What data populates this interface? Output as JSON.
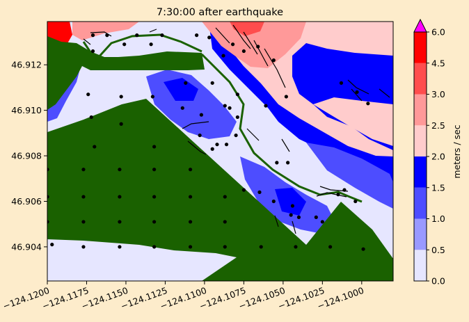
{
  "chart_data": {
    "type": "heatmap",
    "title": "7:30:00 after earthquake",
    "xlim": [
      -124.12,
      -124.098
    ],
    "ylim": [
      46.9025,
      46.9139
    ],
    "x_ticks": [
      -124.12,
      -124.1175,
      -124.115,
      -124.1125,
      -124.11,
      -124.1075,
      -124.105,
      -124.1025,
      -124.1
    ],
    "x_tick_labels": [
      "−124.1200",
      "−124.1175",
      "−124.1150",
      "−124.1125",
      "−124.1100",
      "−124.1075",
      "−124.1050",
      "−124.1025",
      "−124.1000"
    ],
    "y_ticks": [
      46.904,
      46.906,
      46.908,
      46.91,
      46.912
    ],
    "y_tick_labels": [
      "46.904",
      "46.906",
      "46.908",
      "46.910",
      "46.912"
    ],
    "colorbar": {
      "label": "meters / sec",
      "boundaries": [
        0.0,
        0.5,
        1.0,
        1.5,
        2.0,
        2.5,
        3.0,
        4.5,
        6.0
      ],
      "tick_labels": [
        "0.0",
        "0.5",
        "1.0",
        "1.5",
        "2.0",
        "2.5",
        "3.0",
        "4.5",
        "6.0"
      ],
      "colors": [
        "#e6e6ff",
        "#9999ff",
        "#4d4dff",
        "#0000ff",
        "#ffcccc",
        "#ff9999",
        "#ff4d4d",
        "#ff0000"
      ],
      "extend_color": "#ff00ff"
    },
    "colors": {
      "land": "#1a6100",
      "marker": "#000000"
    },
    "markers": [
      [
        -124.1171,
        46.9133
      ],
      [
        -124.1162,
        46.9133
      ],
      [
        -124.1143,
        46.9133
      ],
      [
        -124.1127,
        46.9133
      ],
      [
        -124.1105,
        46.9133
      ],
      [
        -124.1171,
        46.9126
      ],
      [
        -124.1151,
        46.9129
      ],
      [
        -124.1134,
        46.9129
      ],
      [
        -124.1174,
        46.9107
      ],
      [
        -124.1172,
        46.9097
      ],
      [
        -124.117,
        46.9084
      ],
      [
        -124.1153,
        46.9106
      ],
      [
        -124.1153,
        46.9094
      ],
      [
        -124.1132,
        46.9084
      ],
      [
        -124.1133,
        46.9106
      ],
      [
        -124.12,
        46.9074
      ],
      [
        -124.1177,
        46.9074
      ],
      [
        -124.1154,
        46.9074
      ],
      [
        -124.1132,
        46.9074
      ],
      [
        -124.1109,
        46.9074
      ],
      [
        -124.12,
        46.9062
      ],
      [
        -124.1177,
        46.9062
      ],
      [
        -124.1154,
        46.9062
      ],
      [
        -124.1132,
        46.9062
      ],
      [
        -124.1109,
        46.9062
      ],
      [
        -124.1087,
        46.9062
      ],
      [
        -124.12,
        46.9051
      ],
      [
        -124.1177,
        46.9051
      ],
      [
        -124.1154,
        46.9051
      ],
      [
        -124.1132,
        46.9051
      ],
      [
        -124.1109,
        46.9051
      ],
      [
        -124.1087,
        46.9051
      ],
      [
        -124.1197,
        46.9041
      ],
      [
        -124.1177,
        46.904
      ],
      [
        -124.1154,
        46.904
      ],
      [
        -124.1132,
        46.904
      ],
      [
        -124.1109,
        46.904
      ],
      [
        -124.1087,
        46.904
      ],
      [
        -124.1064,
        46.904
      ],
      [
        -124.1042,
        46.904
      ],
      [
        -124.102,
        46.904
      ],
      [
        -124.1112,
        46.9112
      ],
      [
        -124.1095,
        46.9112
      ],
      [
        -124.1084,
        46.9101
      ],
      [
        -124.1079,
        46.9097
      ],
      [
        -124.1079,
        46.9107
      ],
      [
        -124.1061,
        46.9102
      ],
      [
        -124.1114,
        46.9101
      ],
      [
        -124.1102,
        46.9098
      ],
      [
        -124.1103,
        46.9089
      ],
      [
        -124.108,
        46.9089
      ],
      [
        -124.1095,
        46.9083
      ],
      [
        -124.1086,
        46.9085
      ],
      [
        -124.1092,
        46.9085
      ],
      [
        -124.1054,
        46.9077
      ],
      [
        -124.1047,
        46.9077
      ],
      [
        -124.1075,
        46.9065
      ],
      [
        -124.1065,
        46.9064
      ],
      [
        -124.1056,
        46.906
      ],
      [
        -124.1045,
        46.9054
      ],
      [
        -124.1044,
        46.9058
      ],
      [
        -124.104,
        46.9053
      ],
      [
        -124.1029,
        46.9053
      ],
      [
        -124.1025,
        46.9051
      ],
      [
        -124.1015,
        46.9063
      ],
      [
        -124.1011,
        46.9065
      ],
      [
        -124.1004,
        46.906
      ],
      [
        -124.0999,
        46.9039
      ],
      [
        -124.1087,
        46.9102
      ],
      [
        -124.1097,
        46.9132
      ],
      [
        -124.1082,
        46.9129
      ],
      [
        -124.1075,
        46.9126
      ],
      [
        -124.1066,
        46.9128
      ],
      [
        -124.1056,
        46.9122
      ],
      [
        -124.1048,
        46.9106
      ],
      [
        -124.1013,
        46.9112
      ],
      [
        -124.1003,
        46.9108
      ],
      [
        -124.0996,
        46.9103
      ],
      [
        -124.1088,
        46.9124
      ]
    ]
  }
}
